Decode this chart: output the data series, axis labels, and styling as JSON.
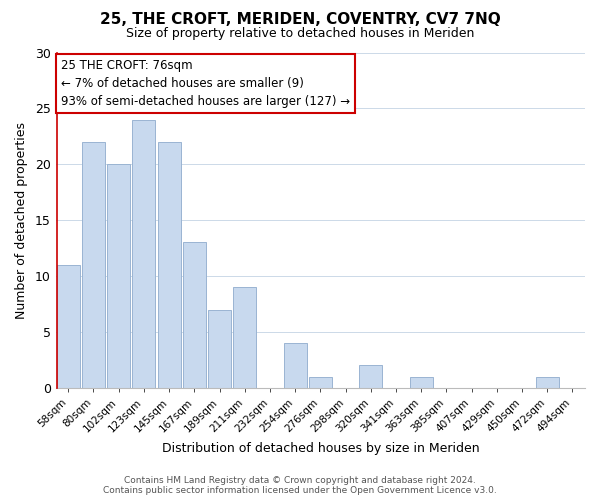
{
  "title": "25, THE CROFT, MERIDEN, COVENTRY, CV7 7NQ",
  "subtitle": "Size of property relative to detached houses in Meriden",
  "xlabel": "Distribution of detached houses by size in Meriden",
  "ylabel": "Number of detached properties",
  "bar_labels": [
    "58sqm",
    "80sqm",
    "102sqm",
    "123sqm",
    "145sqm",
    "167sqm",
    "189sqm",
    "211sqm",
    "232sqm",
    "254sqm",
    "276sqm",
    "298sqm",
    "320sqm",
    "341sqm",
    "363sqm",
    "385sqm",
    "407sqm",
    "429sqm",
    "450sqm",
    "472sqm",
    "494sqm"
  ],
  "bar_values": [
    11,
    22,
    20,
    24,
    22,
    13,
    7,
    9,
    0,
    4,
    1,
    0,
    2,
    0,
    1,
    0,
    0,
    0,
    0,
    1,
    0
  ],
  "bar_color": "#c8d9ee",
  "bar_edge_color": "#9ab4d2",
  "highlight_color": "#cc0000",
  "ylim": [
    0,
    30
  ],
  "yticks": [
    0,
    5,
    10,
    15,
    20,
    25,
    30
  ],
  "annotation_title": "25 THE CROFT: 76sqm",
  "annotation_line1": "← 7% of detached houses are smaller (9)",
  "annotation_line2": "93% of semi-detached houses are larger (127) →",
  "annotation_box_color": "#ffffff",
  "annotation_box_edge_color": "#cc0000",
  "footer_line1": "Contains HM Land Registry data © Crown copyright and database right 2024.",
  "footer_line2": "Contains public sector information licensed under the Open Government Licence v3.0.",
  "background_color": "#ffffff",
  "grid_color": "#ccd9e8"
}
